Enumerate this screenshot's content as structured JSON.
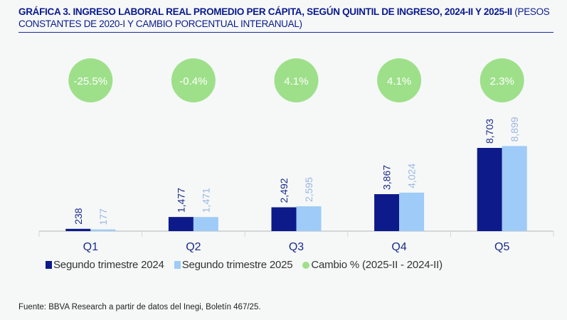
{
  "title_bold": "GRÁFICA 3. INGRESO LABORAL REAL PROMEDIO PER CÁPITA, SEGÚN QUINTIL DE INGRESO, 2024-II Y 2025-II",
  "title_rest": " (PESOS CONSTANTES DE 2020-I Y CAMBIO PORCENTUAL INTERANUAL)",
  "source": "Fuente: BBVA Research a partir de datos del Inegi, Boletín 467/25.",
  "chart_data": {
    "type": "bar",
    "categories": [
      "Q1",
      "Q2",
      "Q3",
      "Q4",
      "Q5"
    ],
    "series": [
      {
        "name": "Segundo trimestre 2024",
        "values": [
          238,
          1477,
          2492,
          3867,
          8703
        ],
        "labels": [
          "238",
          "1,477",
          "2,492",
          "3,867",
          "8,703"
        ],
        "color": "#0d1a8a"
      },
      {
        "name": "Segundo trimestre 2025",
        "values": [
          177,
          1471,
          2595,
          4024,
          8899
        ],
        "labels": [
          "177",
          "1,471",
          "2,595",
          "4,024",
          "8,899"
        ],
        "color": "#9ecbf7"
      },
      {
        "name": "Cambio % (2025-II - 2024-II)",
        "values": [
          -25.5,
          -0.4,
          4.1,
          4.1,
          2.3
        ],
        "labels": [
          "-25.5%",
          "-0.4%",
          "4.1%",
          "4.1%",
          "2.3%"
        ],
        "color": "#9ee08a",
        "type": "bubble"
      }
    ],
    "legend": "bottom",
    "grid": false
  }
}
